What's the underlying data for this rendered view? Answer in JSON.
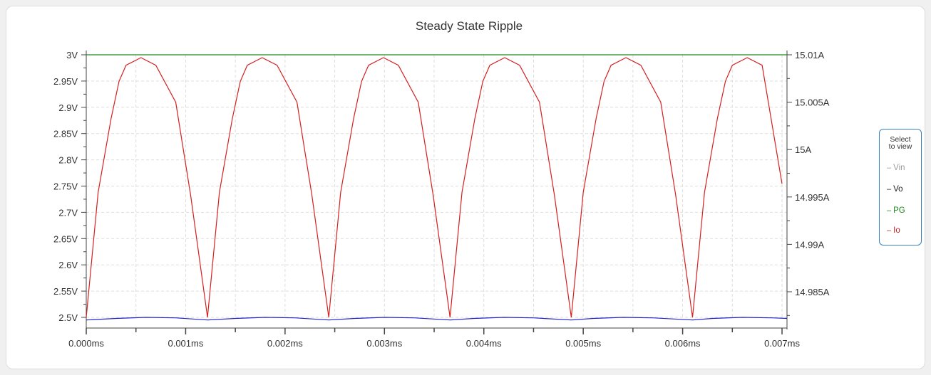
{
  "chart_data": {
    "type": "line",
    "title": "Steady State Ripple",
    "x_ticks": [
      "0.000ms",
      "0.001ms",
      "0.002ms",
      "0.003ms",
      "0.004ms",
      "0.005ms",
      "0.006ms",
      "0.007ms"
    ],
    "xlim_ms": [
      0,
      0.00705
    ],
    "left_ticks": [
      "3V",
      "2.95V",
      "2.9V",
      "2.85V",
      "2.8V",
      "2.75V",
      "2.7V",
      "2.65V",
      "2.6V",
      "2.55V",
      "2.5V"
    ],
    "left_ylim": [
      2.49,
      3.0
    ],
    "right_ticks": [
      "15.01A",
      "15.005A",
      "15A",
      "14.995A",
      "14.99A",
      "14.985A"
    ],
    "right_ylim": [
      14.9822,
      15.0102
    ],
    "grid": true,
    "legend_position": "right",
    "series": [
      {
        "name": "PG",
        "axis": "left",
        "color": "#1e8a1e",
        "x": [
          0,
          0.00705
        ],
        "y": [
          3.0,
          3.0
        ]
      },
      {
        "name": "Vo",
        "axis": "left",
        "color": "#2222cc",
        "x": [
          0,
          0.0003,
          0.0006,
          0.0009,
          0.00122,
          0.0015,
          0.0018,
          0.0021,
          0.00244,
          0.0027,
          0.003,
          0.0033,
          0.00366,
          0.0039,
          0.0042,
          0.0045,
          0.00488,
          0.0051,
          0.0054,
          0.0057,
          0.0061,
          0.0063,
          0.0066,
          0.0069,
          0.00705
        ],
        "y": [
          2.495,
          2.498,
          2.5,
          2.499,
          2.495,
          2.498,
          2.5,
          2.499,
          2.495,
          2.498,
          2.5,
          2.499,
          2.495,
          2.498,
          2.5,
          2.499,
          2.495,
          2.498,
          2.5,
          2.499,
          2.495,
          2.498,
          2.5,
          2.499,
          2.498
        ]
      },
      {
        "name": "Io",
        "axis": "right",
        "color": "#d42020",
        "x": [
          0.0,
          0.00012,
          0.00025,
          0.00033,
          0.0004,
          0.00055,
          0.0007,
          0.0009,
          0.00105,
          0.00122,
          0.00134,
          0.00147,
          0.00155,
          0.00162,
          0.00177,
          0.00192,
          0.00212,
          0.00227,
          0.00244,
          0.00256,
          0.00269,
          0.00277,
          0.00284,
          0.00299,
          0.00314,
          0.00334,
          0.00349,
          0.00366,
          0.00378,
          0.00391,
          0.00399,
          0.00406,
          0.00421,
          0.00436,
          0.00456,
          0.00471,
          0.00488,
          0.005,
          0.00513,
          0.00521,
          0.00528,
          0.00543,
          0.00558,
          0.00578,
          0.00593,
          0.0061,
          0.00622,
          0.00635,
          0.00643,
          0.0065,
          0.00665,
          0.0068,
          0.007
        ],
        "y": [
          14.9823,
          14.9955,
          15.0033,
          15.0072,
          15.0089,
          15.0097,
          15.0089,
          15.005,
          14.9952,
          14.9823,
          14.9955,
          15.0033,
          15.0072,
          15.0089,
          15.0097,
          15.0089,
          15.005,
          14.9952,
          14.9823,
          14.9955,
          15.0033,
          15.0072,
          15.0089,
          15.0097,
          15.0089,
          15.005,
          14.9952,
          14.9823,
          14.9955,
          15.0033,
          15.0072,
          15.0089,
          15.0097,
          15.0089,
          15.005,
          14.9952,
          14.9823,
          14.9955,
          15.0033,
          15.0072,
          15.0089,
          15.0097,
          15.0089,
          15.005,
          14.9952,
          14.9823,
          14.9955,
          15.0033,
          15.0072,
          15.0089,
          15.0097,
          15.0089,
          14.9964
        ]
      }
    ]
  },
  "legend": {
    "heading_line1": "Select",
    "heading_line2": "to view",
    "items": [
      {
        "label": "Vin",
        "color": "#9a9a9a"
      },
      {
        "label": "Vo",
        "color": "#222222"
      },
      {
        "label": "PG",
        "color": "#1e8a1e"
      },
      {
        "label": "Io",
        "color": "#c02020"
      }
    ]
  }
}
